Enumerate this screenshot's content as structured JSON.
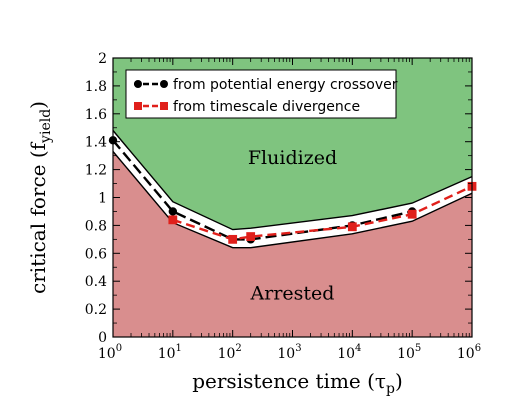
{
  "chart_data": {
    "type": "line",
    "x_scale": "log",
    "xlim": [
      1,
      1000000
    ],
    "ylim": [
      0,
      2
    ],
    "x_ticks": [
      {
        "mantissa": "10",
        "exp": "0",
        "value": 1
      },
      {
        "mantissa": "10",
        "exp": "1",
        "value": 10
      },
      {
        "mantissa": "10",
        "exp": "2",
        "value": 100
      },
      {
        "mantissa": "10",
        "exp": "3",
        "value": 1000
      },
      {
        "mantissa": "10",
        "exp": "4",
        "value": 10000
      },
      {
        "mantissa": "10",
        "exp": "5",
        "value": 100000
      },
      {
        "mantissa": "10",
        "exp": "6",
        "value": 1000000
      }
    ],
    "y_ticks": [
      "0",
      "0.2",
      "0.4",
      "0.6",
      "0.8",
      "1",
      "1.2",
      "1.4",
      "1.6",
      "1.8",
      "2"
    ],
    "xlabel": {
      "main": "persistence time (",
      "sym": "τ",
      "sub": "p",
      "close": ")"
    },
    "ylabel": {
      "main": "critical force (f",
      "sub": "yield",
      "close": ")"
    },
    "legend_position": "top-left",
    "regions": [
      {
        "label": "Fluidized",
        "color": "#7fc47f",
        "label_at": {
          "x": 1000,
          "y": 1.24
        }
      },
      {
        "label": "Arrested",
        "color": "#d98e8e",
        "label_at": {
          "x": 1000,
          "y": 0.27
        }
      }
    ],
    "band_upper": [
      {
        "x": 1,
        "y": 1.48
      },
      {
        "x": 10,
        "y": 0.97
      },
      {
        "x": 100,
        "y": 0.77
      },
      {
        "x": 200,
        "y": 0.78
      },
      {
        "x": 10000,
        "y": 0.87
      },
      {
        "x": 100000,
        "y": 0.96
      },
      {
        "x": 1000000,
        "y": 1.15
      }
    ],
    "band_lower": [
      {
        "x": 1,
        "y": 1.33
      },
      {
        "x": 10,
        "y": 0.82
      },
      {
        "x": 100,
        "y": 0.64
      },
      {
        "x": 200,
        "y": 0.64
      },
      {
        "x": 10000,
        "y": 0.74
      },
      {
        "x": 100000,
        "y": 0.83
      },
      {
        "x": 1000000,
        "y": 1.03
      }
    ],
    "series": [
      {
        "name": "from potential energy crossover",
        "color": "#000000",
        "marker": "circle",
        "points": [
          {
            "x": 1,
            "y": 1.41
          },
          {
            "x": 10,
            "y": 0.9
          },
          {
            "x": 100,
            "y": 0.7
          },
          {
            "x": 200,
            "y": 0.7
          },
          {
            "x": 10000,
            "y": 0.8
          },
          {
            "x": 100000,
            "y": 0.9
          }
        ]
      },
      {
        "name": "from timescale divergence",
        "color": "#e0201b",
        "marker": "square",
        "points": [
          {
            "x": 10,
            "y": 0.84
          },
          {
            "x": 100,
            "y": 0.7
          },
          {
            "x": 200,
            "y": 0.72
          },
          {
            "x": 10000,
            "y": 0.79
          },
          {
            "x": 100000,
            "y": 0.88
          },
          {
            "x": 1000000,
            "y": 1.08
          }
        ]
      }
    ]
  }
}
